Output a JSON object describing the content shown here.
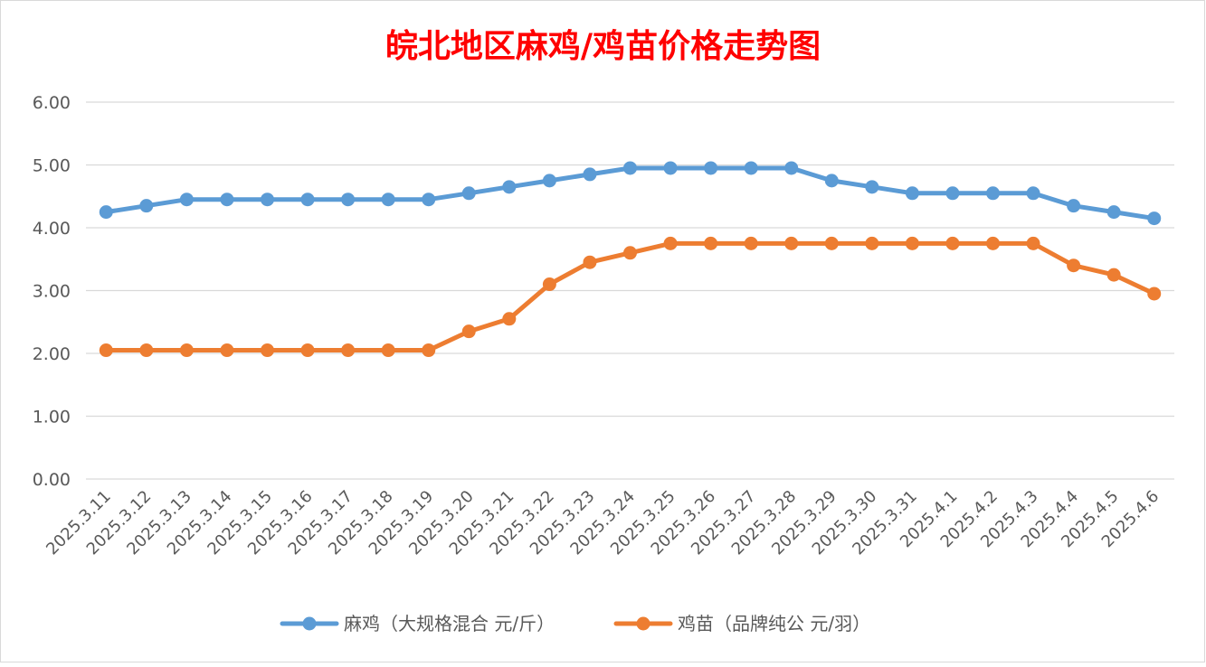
{
  "chart_data": {
    "type": "line",
    "title": "皖北地区麻鸡/鸡苗价格走势图",
    "xlabel": "",
    "ylabel": "",
    "categories": [
      "2025.3.11",
      "2025.3.12",
      "2025.3.13",
      "2025.3.14",
      "2025.3.15",
      "2025.3.16",
      "2025.3.17",
      "2025.3.18",
      "2025.3.19",
      "2025.3.20",
      "2025.3.21",
      "2025.3.22",
      "2025.3.23",
      "2025.3.24",
      "2025.3.25",
      "2025.3.26",
      "2025.3.27",
      "2025.3.28",
      "2025.3.29",
      "2025.3.30",
      "2025.3.31",
      "2025.4.1",
      "2025.4.2",
      "2025.4.3",
      "2025.4.4",
      "2025.4.5",
      "2025.4.6"
    ],
    "ylim": [
      0,
      6
    ],
    "yticks": [
      "0.00",
      "1.00",
      "2.00",
      "3.00",
      "4.00",
      "5.00",
      "6.00"
    ],
    "grid": true,
    "legend_position": "bottom",
    "series": [
      {
        "name": "麻鸡（大规格混合 元/斤）",
        "color": "#5b9bd5",
        "values": [
          4.25,
          4.35,
          4.45,
          4.45,
          4.45,
          4.45,
          4.45,
          4.45,
          4.45,
          4.55,
          4.65,
          4.75,
          4.85,
          4.95,
          4.95,
          4.95,
          4.95,
          4.95,
          4.75,
          4.65,
          4.55,
          4.55,
          4.55,
          4.55,
          4.35,
          4.25,
          4.15
        ]
      },
      {
        "name": "鸡苗（品牌纯公 元/羽）",
        "color": "#ed7d31",
        "values": [
          2.05,
          2.05,
          2.05,
          2.05,
          2.05,
          2.05,
          2.05,
          2.05,
          2.05,
          2.35,
          2.55,
          3.1,
          3.45,
          3.6,
          3.75,
          3.75,
          3.75,
          3.75,
          3.75,
          3.75,
          3.75,
          3.75,
          3.75,
          3.75,
          3.4,
          3.25,
          2.95
        ]
      }
    ]
  }
}
